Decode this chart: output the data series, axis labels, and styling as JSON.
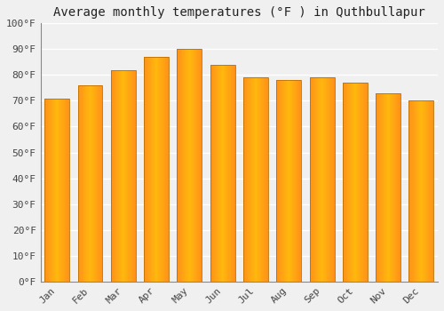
{
  "title": "Average monthly temperatures (°F ) in Quthbullapur",
  "months": [
    "Jan",
    "Feb",
    "Mar",
    "Apr",
    "May",
    "Jun",
    "Jul",
    "Aug",
    "Sep",
    "Oct",
    "Nov",
    "Dec"
  ],
  "values": [
    71,
    76,
    82,
    87,
    90,
    84,
    79,
    78,
    79,
    77,
    73,
    70
  ],
  "ylim": [
    0,
    100
  ],
  "yticks": [
    0,
    10,
    20,
    30,
    40,
    50,
    60,
    70,
    80,
    90,
    100
  ],
  "ytick_labels": [
    "0°F",
    "10°F",
    "20°F",
    "30°F",
    "40°F",
    "50°F",
    "60°F",
    "70°F",
    "80°F",
    "90°F",
    "100°F"
  ],
  "bar_color_center": "#FFB300",
  "bar_color_edge": "#E87800",
  "bar_edge_color": "#BB7000",
  "background_color": "#f0f0f0",
  "plot_bg_color": "#f0f0f0",
  "grid_color": "#ffffff",
  "title_fontsize": 10,
  "tick_fontsize": 8,
  "font_family": "monospace"
}
